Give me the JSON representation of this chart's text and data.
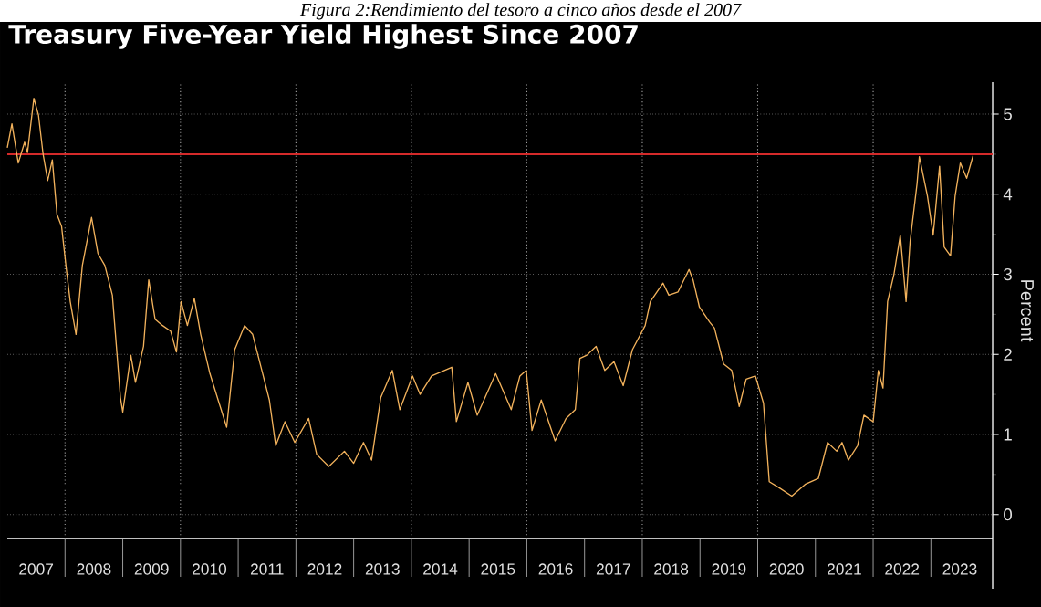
{
  "chart_data": {
    "type": "line",
    "title": "Treasury Five-Year Yield Highest Since 2007",
    "ylabel": "Percent",
    "annotations": [
      "Figura 2:Rendimiento del tesoro a cinco años desde el 2007"
    ],
    "x": [
      2007.0,
      2007.08,
      2007.19,
      2007.3,
      2007.35,
      2007.46,
      2007.54,
      2007.62,
      2007.7,
      2007.78,
      2007.86,
      2007.94,
      2008.02,
      2008.09,
      2008.19,
      2008.3,
      2008.46,
      2008.57,
      2008.69,
      2008.82,
      2008.96,
      2009.0,
      2009.14,
      2009.22,
      2009.36,
      2009.45,
      2009.56,
      2009.69,
      2009.83,
      2009.93,
      2010.01,
      2010.12,
      2010.24,
      2010.35,
      2010.51,
      2010.67,
      2010.8,
      2010.94,
      2011.11,
      2011.25,
      2011.41,
      2011.54,
      2011.65,
      2011.81,
      2011.98,
      2012.22,
      2012.36,
      2012.57,
      2012.84,
      2013.0,
      2013.17,
      2013.31,
      2013.47,
      2013.67,
      2013.8,
      2014.02,
      2014.15,
      2014.35,
      2014.7,
      2014.78,
      2014.98,
      2015.14,
      2015.46,
      2015.73,
      2015.88,
      2015.99,
      2016.09,
      2016.25,
      2016.49,
      2016.68,
      2016.84,
      2016.92,
      2017.04,
      2017.2,
      2017.35,
      2017.51,
      2017.67,
      2017.83,
      2018.05,
      2018.14,
      2018.36,
      2018.46,
      2018.62,
      2018.81,
      2018.88,
      2018.99,
      2019.17,
      2019.25,
      2019.41,
      2019.55,
      2019.68,
      2019.8,
      2019.96,
      2020.1,
      2020.2,
      2020.36,
      2020.59,
      2020.83,
      2021.05,
      2021.21,
      2021.37,
      2021.46,
      2021.57,
      2021.73,
      2021.84,
      2022.0,
      2022.09,
      2022.17,
      2022.25,
      2022.36,
      2022.47,
      2022.57,
      2022.64,
      2022.76,
      2022.8,
      2022.94,
      2023.04,
      2023.15,
      2023.23,
      2023.34,
      2023.42,
      2023.51,
      2023.62,
      2023.73
    ],
    "series": [
      {
        "color": "#f2b25c",
        "values": [
          4.58,
          4.88,
          4.39,
          4.65,
          4.52,
          5.2,
          4.99,
          4.5,
          4.17,
          4.43,
          3.75,
          3.6,
          3.08,
          2.66,
          2.25,
          3.11,
          3.71,
          3.26,
          3.11,
          2.74,
          1.46,
          1.28,
          1.99,
          1.65,
          2.1,
          2.93,
          2.44,
          2.36,
          2.29,
          2.03,
          2.66,
          2.36,
          2.7,
          2.25,
          1.76,
          1.39,
          1.09,
          2.06,
          2.36,
          2.25,
          1.8,
          1.43,
          0.86,
          1.16,
          0.9,
          1.2,
          0.75,
          0.6,
          0.79,
          0.64,
          0.9,
          0.68,
          1.46,
          1.8,
          1.31,
          1.73,
          1.5,
          1.73,
          1.84,
          1.16,
          1.65,
          1.24,
          1.76,
          1.31,
          1.73,
          1.8,
          1.05,
          1.43,
          0.92,
          1.2,
          1.31,
          1.95,
          1.99,
          2.1,
          1.8,
          1.91,
          1.61,
          2.06,
          2.36,
          2.66,
          2.89,
          2.74,
          2.78,
          3.06,
          2.93,
          2.59,
          2.4,
          2.33,
          1.88,
          1.8,
          1.35,
          1.69,
          1.73,
          1.39,
          0.41,
          0.34,
          0.23,
          0.38,
          0.45,
          0.9,
          0.79,
          0.9,
          0.68,
          0.86,
          1.24,
          1.16,
          1.8,
          1.58,
          2.66,
          3.0,
          3.49,
          2.66,
          3.41,
          4.13,
          4.47,
          3.98,
          3.49,
          4.35,
          3.34,
          3.23,
          3.98,
          4.39,
          4.2,
          4.48
        ]
      }
    ],
    "xlim": [
      2007,
      2024.07
    ],
    "ylim": [
      -0.3,
      5.4
    ],
    "xticks": [
      {
        "value": 2007.5,
        "label": "2007"
      },
      {
        "value": 2008.5,
        "label": "2008"
      },
      {
        "value": 2009.5,
        "label": "2009"
      },
      {
        "value": 2010.5,
        "label": "2010"
      },
      {
        "value": 2011.5,
        "label": "2011"
      },
      {
        "value": 2012.5,
        "label": "2012"
      },
      {
        "value": 2013.5,
        "label": "2013"
      },
      {
        "value": 2014.5,
        "label": "2014"
      },
      {
        "value": 2015.5,
        "label": "2015"
      },
      {
        "value": 2016.5,
        "label": "2016"
      },
      {
        "value": 2017.5,
        "label": "2017"
      },
      {
        "value": 2018.5,
        "label": "2018"
      },
      {
        "value": 2019.5,
        "label": "2019"
      },
      {
        "value": 2020.5,
        "label": "2020"
      },
      {
        "value": 2021.5,
        "label": "2021"
      },
      {
        "value": 2022.5,
        "label": "2022"
      },
      {
        "value": 2023.5,
        "label": "2023"
      },
      {
        "value": 2008,
        "label": null
      },
      {
        "value": 2010,
        "label": null
      },
      {
        "value": 2012,
        "label": null
      },
      {
        "value": 2014,
        "label": null
      },
      {
        "value": 2016,
        "label": null
      },
      {
        "value": 2018,
        "label": null
      },
      {
        "value": 2020,
        "label": null
      },
      {
        "value": 2022,
        "label": null
      }
    ],
    "yticks": [
      0,
      1,
      2,
      3,
      4,
      5,
      {
        "value": 0.5,
        "label": null
      },
      {
        "value": 1.5,
        "label": null
      },
      {
        "value": 2.5,
        "label": null
      },
      {
        "value": 3.5,
        "label": null
      },
      {
        "value": 4.5,
        "label": null
      }
    ],
    "ref_lines": [
      {
        "axis": "y",
        "value": 4.5,
        "color": "#d42a2a"
      }
    ],
    "grid": true
  }
}
